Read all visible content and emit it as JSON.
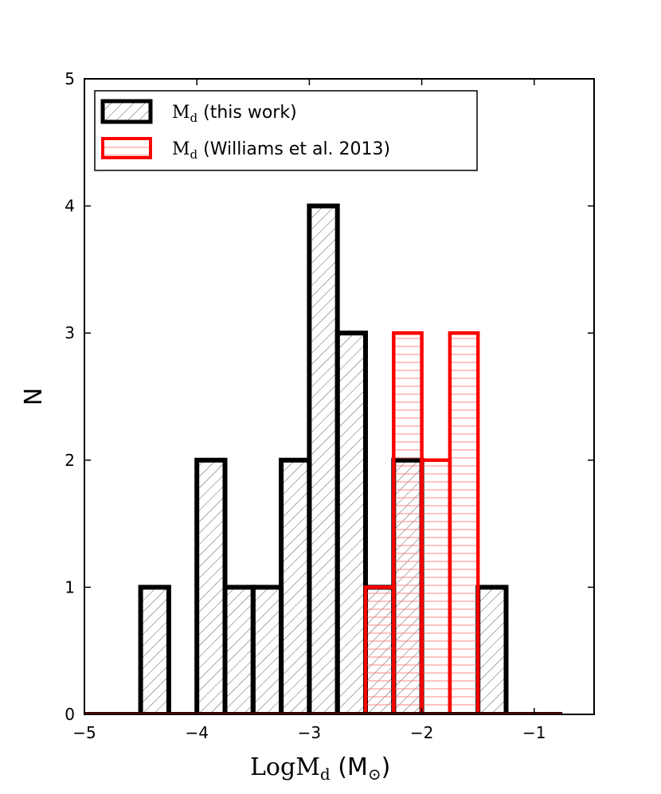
{
  "chart_data": {
    "type": "bar",
    "title": "",
    "xlabel": "LogM_d (M_⊙)",
    "ylabel": "N",
    "xlim": [
      -5.0,
      -0.6
    ],
    "ylim": [
      0,
      5
    ],
    "xticks": [
      -5,
      -4,
      -3,
      -2,
      -1
    ],
    "xtick_labels": [
      "−5",
      "−4",
      "−3",
      "−2",
      "−1"
    ],
    "yticks": [
      0,
      1,
      2,
      3,
      4,
      5
    ],
    "ytick_labels": [
      "0",
      "1",
      "2",
      "3",
      "4",
      "5"
    ],
    "grid": false,
    "legend_position": "top-left",
    "bin_width": 0.25,
    "bin_edges": [
      -5.0,
      -4.75,
      -4.5,
      -4.25,
      -4.0,
      -3.75,
      -3.5,
      -3.25,
      -3.0,
      -2.75,
      -2.5,
      -2.25,
      -2.0,
      -1.75,
      -1.5,
      -1.25,
      -1.0,
      -0.75
    ],
    "series": [
      {
        "name": "M_d (this work)",
        "color": "#000000",
        "hatch": "diagonal",
        "bins": [
          {
            "x0": -4.5,
            "x1": -4.25,
            "count": 1
          },
          {
            "x0": -4.0,
            "x1": -3.75,
            "count": 2
          },
          {
            "x0": -3.75,
            "x1": -3.5,
            "count": 1
          },
          {
            "x0": -3.5,
            "x1": -3.25,
            "count": 1
          },
          {
            "x0": -3.25,
            "x1": -3.0,
            "count": 2
          },
          {
            "x0": -3.0,
            "x1": -2.75,
            "count": 4
          },
          {
            "x0": -2.75,
            "x1": -2.5,
            "count": 3
          },
          {
            "x0": -2.5,
            "x1": -2.25,
            "count": 1
          },
          {
            "x0": -2.25,
            "x1": -2.0,
            "count": 2
          },
          {
            "x0": -1.5,
            "x1": -1.25,
            "count": 1
          }
        ]
      },
      {
        "name": "M_d (Williams et al. 2013)",
        "color": "#ff0000",
        "hatch": "horizontal",
        "bins": [
          {
            "x0": -2.5,
            "x1": -2.25,
            "count": 1
          },
          {
            "x0": -2.25,
            "x1": -2.0,
            "count": 3
          },
          {
            "x0": -2.0,
            "x1": -1.75,
            "count": 2
          },
          {
            "x0": -1.75,
            "x1": -1.5,
            "count": 3
          }
        ]
      }
    ]
  },
  "legend": {
    "entries": [
      {
        "prefix": "M",
        "sub": "d",
        "rest": " (this work)"
      },
      {
        "prefix": "M",
        "sub": "d",
        "rest": " (Williams et al. 2013)"
      }
    ]
  },
  "axes": {
    "x_label": {
      "prefix": "LogM",
      "sub": "d",
      "unit_open": " (M",
      "unit_sub": "⊙",
      "unit_close": ")"
    },
    "y_label": "N"
  }
}
